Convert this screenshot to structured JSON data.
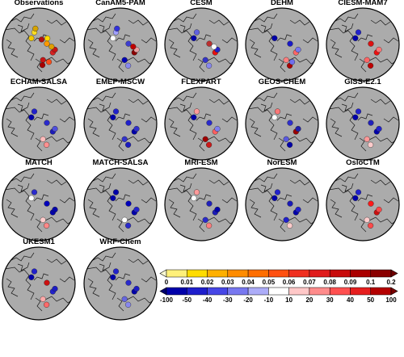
{
  "panels": [
    {
      "title": "Observations",
      "kind": "abs",
      "points": [
        [
          -120,
          70,
          "#d42222"
        ],
        [
          -108,
          69,
          "#c81414"
        ],
        [
          -85,
          80,
          "#ff9900"
        ],
        [
          -100,
          74,
          "#e0a000"
        ],
        [
          -30,
          83,
          "#b01010"
        ],
        [
          -55,
          77,
          "#ffd800"
        ],
        [
          50,
          78,
          "#f2c800"
        ],
        [
          20,
          74,
          "#ffdd22"
        ],
        [
          12,
          70,
          "#d8a400"
        ],
        [
          -165,
          70,
          "#c81414"
        ],
        [
          -170,
          64,
          "#a80000"
        ],
        [
          -150,
          65,
          "#ff4e1a"
        ]
      ]
    },
    {
      "title": "CanAM5-PAM",
      "kind": "rel",
      "points": [
        [
          -120,
          70,
          "#8b0000"
        ],
        [
          -108,
          69,
          "#e8a0a0"
        ],
        [
          -100,
          74,
          "#c00000"
        ],
        [
          -85,
          80,
          "#3d3dcf"
        ],
        [
          50,
          78,
          "#ffffff"
        ],
        [
          20,
          74,
          "#a0a0ff"
        ],
        [
          12,
          70,
          "#3232dc"
        ],
        [
          -165,
          70,
          "#0000b4"
        ],
        [
          -160,
          62,
          "#8888ee"
        ]
      ]
    },
    {
      "title": "CESM",
      "kind": "rel",
      "points": [
        [
          -120,
          70,
          "#e81010"
        ],
        [
          -108,
          69,
          "#2222c8"
        ],
        [
          -85,
          80,
          "#bb3030"
        ],
        [
          -100,
          74,
          "#ffffff"
        ],
        [
          50,
          78,
          "#0000aa"
        ],
        [
          20,
          74,
          "#6060e0"
        ],
        [
          -165,
          70,
          "#3434c8"
        ],
        [
          -160,
          62,
          "#8888ee"
        ]
      ]
    },
    {
      "title": "DEHM",
      "kind": "rel",
      "points": [
        [
          -120,
          70,
          "#ff6666"
        ],
        [
          -108,
          69,
          "#7777ee"
        ],
        [
          -85,
          80,
          "#1a1ac8"
        ],
        [
          50,
          78,
          "#0000aa"
        ],
        [
          -165,
          70,
          "#ff7f7f"
        ],
        [
          -160,
          62,
          "#aa0000"
        ],
        [
          -150,
          65,
          "#7070ee"
        ]
      ]
    },
    {
      "title": "CIESM-MAM7",
      "kind": "rel",
      "points": [
        [
          -120,
          70,
          "#ee1010"
        ],
        [
          -108,
          69,
          "#ff7777"
        ],
        [
          -85,
          80,
          "#dd1111"
        ],
        [
          50,
          78,
          "#0000aa"
        ],
        [
          20,
          74,
          "#2222cc"
        ],
        [
          -165,
          70,
          "#ff6666"
        ],
        [
          -160,
          62,
          "#c00000"
        ]
      ]
    },
    {
      "title": "ECHAM-SALSA",
      "kind": "rel",
      "points": [
        [
          -120,
          70,
          "#1c1cb8"
        ],
        [
          -108,
          69,
          "#5050dd"
        ],
        [
          -85,
          80,
          "#2a2acc"
        ],
        [
          50,
          78,
          "#0000aa"
        ],
        [
          20,
          74,
          "#2222cc"
        ],
        [
          -165,
          70,
          "#ffbbbb"
        ],
        [
          -160,
          62,
          "#ff9090"
        ]
      ]
    },
    {
      "title": "EMEP-MSCW",
      "kind": "rel",
      "points": [
        [
          -120,
          70,
          "#0000aa"
        ],
        [
          -108,
          69,
          "#3030cc"
        ],
        [
          -85,
          80,
          "#2020cc"
        ],
        [
          50,
          78,
          "#0000aa"
        ],
        [
          20,
          74,
          "#2222cc"
        ],
        [
          -165,
          70,
          "#3232cc"
        ],
        [
          -160,
          62,
          "#1a1ac0"
        ]
      ]
    },
    {
      "title": "FLEXPART",
      "kind": "rel",
      "points": [
        [
          -120,
          70,
          "#ff6060"
        ],
        [
          -108,
          69,
          "#8080ee"
        ],
        [
          -85,
          80,
          "#2a2acc"
        ],
        [
          50,
          78,
          "#0000aa"
        ],
        [
          20,
          74,
          "#ff9999"
        ],
        [
          -165,
          70,
          "#a00000"
        ],
        [
          -160,
          62,
          "#cc1a1a"
        ]
      ]
    },
    {
      "title": "GEOS-CHEM",
      "kind": "rel",
      "points": [
        [
          -120,
          70,
          "#9b0000"
        ],
        [
          -108,
          69,
          "#2020aa"
        ],
        [
          -85,
          80,
          "#3030cc"
        ],
        [
          50,
          78,
          "#ffffff"
        ],
        [
          20,
          74,
          "#ff7777"
        ],
        [
          -165,
          70,
          "#5a5ae0"
        ],
        [
          -160,
          62,
          "#0000aa"
        ]
      ]
    },
    {
      "title": "GISS-E2.1",
      "kind": "rel",
      "points": [
        [
          -120,
          70,
          "#0000aa"
        ],
        [
          -108,
          69,
          "#2222cc"
        ],
        [
          -85,
          80,
          "#2020bb"
        ],
        [
          50,
          78,
          "#0000aa"
        ],
        [
          20,
          74,
          "#2222cc"
        ],
        [
          -165,
          70,
          "#ff9999"
        ],
        [
          -160,
          62,
          "#ffcccc"
        ]
      ]
    },
    {
      "title": "MATCH",
      "kind": "rel",
      "points": [
        [
          -120,
          70,
          "#0000aa"
        ],
        [
          -108,
          69,
          "#0000aa"
        ],
        [
          -85,
          80,
          "#0000bb"
        ],
        [
          50,
          78,
          "#ffffff"
        ],
        [
          20,
          74,
          "#2a2acc"
        ],
        [
          -165,
          70,
          "#ffcccc"
        ],
        [
          -160,
          62,
          "#ff8888"
        ]
      ]
    },
    {
      "title": "MATCH-SALSA",
      "kind": "rel",
      "points": [
        [
          -120,
          70,
          "#0000aa"
        ],
        [
          -108,
          69,
          "#2222cc"
        ],
        [
          -85,
          80,
          "#0000bb"
        ],
        [
          50,
          78,
          "#0000aa"
        ],
        [
          20,
          74,
          "#0000aa"
        ],
        [
          -165,
          70,
          "#ffffff"
        ],
        [
          -160,
          62,
          "#2a2acc"
        ]
      ]
    },
    {
      "title": "MRI-ESM",
      "kind": "rel",
      "points": [
        [
          -120,
          70,
          "#1a1ab8"
        ],
        [
          -108,
          69,
          "#0000aa"
        ],
        [
          -85,
          80,
          "#2020bb"
        ],
        [
          50,
          78,
          "#ffffff"
        ],
        [
          20,
          74,
          "#ff9a9a"
        ],
        [
          -165,
          70,
          "#2a2acc"
        ],
        [
          -160,
          62,
          "#ff7f7f"
        ]
      ]
    },
    {
      "title": "NorESM",
      "kind": "rel",
      "points": [
        [
          -120,
          70,
          "#0000aa"
        ],
        [
          -108,
          69,
          "#2020cc"
        ],
        [
          -85,
          80,
          "#1a1ab8"
        ],
        [
          50,
          78,
          "#0000aa"
        ],
        [
          20,
          74,
          "#2222cc"
        ],
        [
          -165,
          70,
          "#2020cc"
        ],
        [
          -160,
          62,
          "#ffcccc"
        ]
      ]
    },
    {
      "title": "OsloCTM",
      "kind": "rel",
      "points": [
        [
          -120,
          70,
          "#cc1010"
        ],
        [
          -108,
          69,
          "#ff4a4a"
        ],
        [
          -85,
          80,
          "#ff1a1a"
        ],
        [
          50,
          78,
          "#0000aa"
        ],
        [
          20,
          74,
          "#2222cc"
        ],
        [
          -165,
          70,
          "#ffcccc"
        ],
        [
          -160,
          62,
          "#ff4a4a"
        ]
      ]
    },
    {
      "title": "UKESM1",
      "kind": "rel",
      "points": [
        [
          -120,
          70,
          "#2222cc"
        ],
        [
          -108,
          69,
          "#1c1cc4"
        ],
        [
          -85,
          80,
          "#cc1010"
        ],
        [
          50,
          78,
          "#0000aa"
        ],
        [
          20,
          74,
          "#2020cc"
        ],
        [
          -165,
          70,
          "#ffaaaa"
        ],
        [
          -160,
          62,
          "#ff6a6a"
        ]
      ]
    },
    {
      "title": "WRF-Chem",
      "kind": "rel",
      "points": [
        [
          -120,
          70,
          "#0000aa"
        ],
        [
          -108,
          69,
          "#1c1cc4"
        ],
        [
          -85,
          80,
          "#2a2acc"
        ],
        [
          50,
          78,
          "#0000aa"
        ],
        [
          20,
          74,
          "#2222cc"
        ],
        [
          -165,
          70,
          "#6666e0"
        ],
        [
          -160,
          62,
          "#8888ee"
        ]
      ]
    }
  ],
  "colorbar_abs": {
    "labels": [
      "0",
      "0.01",
      "0.02",
      "0.03",
      "0.04",
      "0.05",
      "0.06",
      "0.07",
      "0.08",
      "0.09",
      "0.1",
      "0.2"
    ],
    "colors": [
      "#ffffd4",
      "#fff07a",
      "#ffdc00",
      "#ffb000",
      "#ff8c00",
      "#ff6e00",
      "#ff5010",
      "#f03020",
      "#e01c1c",
      "#c80c0c",
      "#aa0000",
      "#8a0000",
      "#6e0000"
    ]
  },
  "colorbar_rel": {
    "labels": [
      "-100",
      "-50",
      "-40",
      "-30",
      "-20",
      "-10",
      "10",
      "20",
      "30",
      "40",
      "50",
      "100"
    ],
    "colors": [
      "#00006e",
      "#0000aa",
      "#1e1ecc",
      "#4646e6",
      "#7878f0",
      "#acacf8",
      "#ffffff",
      "#ffc8c8",
      "#ff8c8c",
      "#ff5050",
      "#e61e1e",
      "#b40000",
      "#780000"
    ]
  },
  "colors": {
    "ocean": "#ababab",
    "land_line": "#1a1a1a",
    "border": "#000000"
  }
}
